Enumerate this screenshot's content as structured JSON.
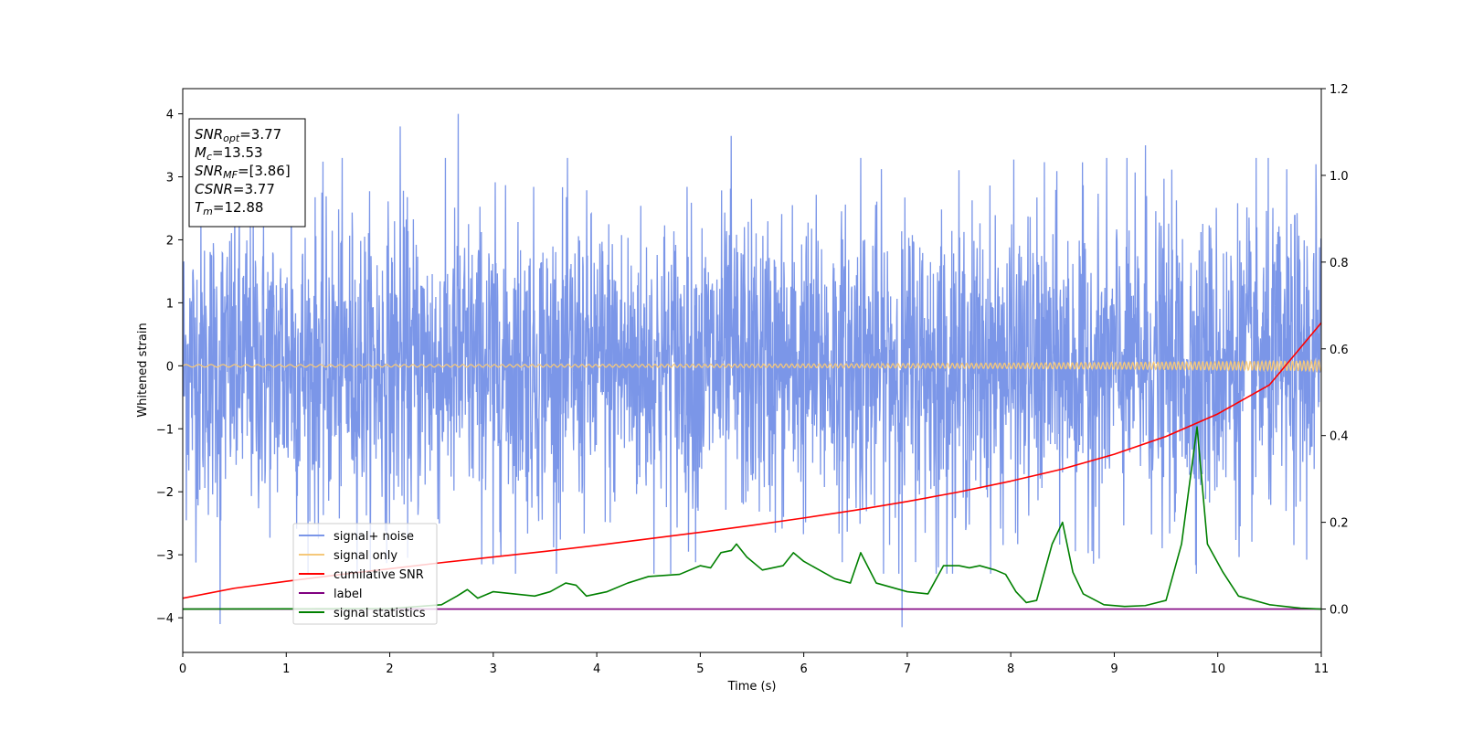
{
  "chart_data": {
    "type": "line",
    "xlabel": "Time (s)",
    "ylabel": "Whitened strain",
    "xlim": [
      0,
      11
    ],
    "ylim_left": [
      -4.55,
      4.4
    ],
    "ylim_right": [
      -0.1,
      1.2
    ],
    "x_ticks": [
      "0",
      "1",
      "2",
      "3",
      "4",
      "5",
      "6",
      "7",
      "8",
      "9",
      "10",
      "11"
    ],
    "y_left_ticks": [
      "4",
      "3",
      "2",
      "1",
      "0",
      "−1",
      "−2",
      "−3",
      "−4"
    ],
    "y_right_ticks": [
      "1.2",
      "1.0",
      "0.8",
      "0.6",
      "0.4",
      "0.2",
      "0.0"
    ],
    "info_box": [
      {
        "base": "SNR",
        "sub": "opt",
        "value": "=3.77"
      },
      {
        "base": "M",
        "sub": "c",
        "value": "=13.53"
      },
      {
        "base": "SNR",
        "sub": "MF",
        "value": "=[3.86]"
      },
      {
        "base": "CSNR",
        "sub": "",
        "value": "=3.77"
      },
      {
        "base": "T",
        "sub": "m",
        "value": "=12.88"
      }
    ],
    "legend": {
      "placement": "lower-left",
      "entries": [
        {
          "label": "signal+ noise",
          "color": "#7b96e8"
        },
        {
          "label": "signal only",
          "color": "#f5c87a"
        },
        {
          "label": "cumilative SNR",
          "color": "#ff0000"
        },
        {
          "label": "label",
          "color": "#800080"
        },
        {
          "label": "signal statistics",
          "color": "#008000"
        }
      ]
    },
    "series": [
      {
        "name": "signal+ noise",
        "axis": "left",
        "kind": "noise",
        "color": "#7b96e8",
        "typical_range": [
          -2.5,
          2.5
        ],
        "spikes": [
          {
            "x": 0.36,
            "y": -4.1
          },
          {
            "x": 1.05,
            "y": 3.6
          },
          {
            "x": 2.1,
            "y": 3.8
          },
          {
            "x": 2.66,
            "y": 4.0
          },
          {
            "x": 3.0,
            "y": -3.15
          },
          {
            "x": 5.3,
            "y": 3.65
          },
          {
            "x": 6.55,
            "y": 3.3
          },
          {
            "x": 6.95,
            "y": -4.15
          },
          {
            "x": 9.3,
            "y": 3.5
          },
          {
            "x": 10.95,
            "y": 3.2
          },
          {
            "x": 7.3,
            "y": -3.2
          }
        ]
      },
      {
        "name": "signal only",
        "axis": "left",
        "kind": "chirp",
        "color": "#f5c87a",
        "amplitude_start": 0.02,
        "amplitude_end": 0.08
      },
      {
        "name": "cumilative SNR",
        "axis": "right",
        "color": "#ff0000",
        "x": [
          0,
          0.5,
          1,
          1.5,
          2,
          2.5,
          3,
          3.5,
          4,
          4.5,
          5,
          5.5,
          6,
          6.5,
          7,
          7.5,
          8,
          8.5,
          9,
          9.5,
          10,
          10.5,
          11
        ],
        "values": [
          0.025,
          0.048,
          0.064,
          0.079,
          0.093,
          0.107,
          0.12,
          0.133,
          0.147,
          0.162,
          0.177,
          0.193,
          0.21,
          0.228,
          0.248,
          0.27,
          0.295,
          0.323,
          0.357,
          0.398,
          0.45,
          0.517,
          0.66
        ]
      },
      {
        "name": "label",
        "axis": "right",
        "color": "#800080",
        "x": [
          0,
          11
        ],
        "values": [
          0,
          0
        ]
      },
      {
        "name": "signal statistics",
        "axis": "right",
        "color": "#008000",
        "x": [
          0,
          2.0,
          2.5,
          2.65,
          2.75,
          2.85,
          3.0,
          3.2,
          3.4,
          3.55,
          3.7,
          3.8,
          3.9,
          4.1,
          4.3,
          4.5,
          4.8,
          5.0,
          5.1,
          5.2,
          5.3,
          5.35,
          5.45,
          5.6,
          5.8,
          5.9,
          6.0,
          6.15,
          6.3,
          6.45,
          6.55,
          6.7,
          6.85,
          7.0,
          7.2,
          7.35,
          7.5,
          7.6,
          7.7,
          7.85,
          7.95,
          8.05,
          8.15,
          8.25,
          8.4,
          8.5,
          8.6,
          8.7,
          8.9,
          9.1,
          9.3,
          9.5,
          9.65,
          9.8,
          9.9,
          10.05,
          10.2,
          10.5,
          10.8,
          11.0
        ],
        "values": [
          0,
          0.001,
          0.01,
          0.03,
          0.045,
          0.025,
          0.04,
          0.035,
          0.03,
          0.04,
          0.06,
          0.055,
          0.03,
          0.04,
          0.06,
          0.075,
          0.08,
          0.1,
          0.095,
          0.13,
          0.135,
          0.15,
          0.12,
          0.09,
          0.1,
          0.13,
          0.11,
          0.09,
          0.07,
          0.06,
          0.13,
          0.06,
          0.05,
          0.04,
          0.035,
          0.1,
          0.1,
          0.095,
          0.1,
          0.09,
          0.08,
          0.04,
          0.015,
          0.02,
          0.15,
          0.2,
          0.085,
          0.035,
          0.01,
          0.006,
          0.008,
          0.02,
          0.15,
          0.42,
          0.15,
          0.085,
          0.03,
          0.01,
          0.002,
          0.0
        ]
      }
    ]
  }
}
